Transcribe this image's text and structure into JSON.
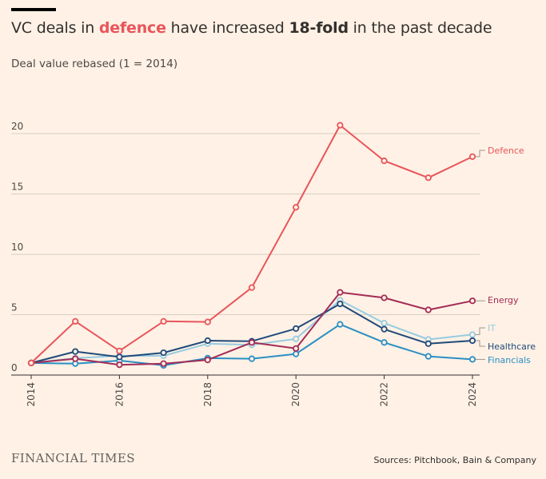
{
  "header": {
    "title_part1": "VC deals in ",
    "title_highlight": "defence",
    "title_part2": " have increased ",
    "title_bold": "18-fold",
    "title_part3": " in the past decade",
    "subtitle": "Deal value rebased (1 = 2014)"
  },
  "footer": {
    "brand": "FINANCIAL TIMES",
    "source": "Sources: Pitchbook, Bain & Company"
  },
  "colors": {
    "background": "#fff1e5",
    "highlight": "#e8555b",
    "grid": "#d8ccc1"
  },
  "chart_data": {
    "type": "line",
    "ylabel": "Deal value rebased (1 = 2014)",
    "xlim": [
      2014,
      2024
    ],
    "ylim": [
      0,
      22
    ],
    "yticks": [
      0,
      5,
      10,
      15,
      20
    ],
    "xticks": [
      "2014",
      "2016",
      "2018",
      "2020",
      "2022",
      "2024"
    ],
    "x": [
      2014,
      2015,
      2016,
      2017,
      2018,
      2019,
      2020,
      2021,
      2022,
      2023,
      2024
    ],
    "grid": true,
    "legend": "direct labels at line ends (right)",
    "series": [
      {
        "name": "Financials",
        "color": "#2a8fc4",
        "values": [
          1.0,
          0.95,
          1.2,
          0.8,
          1.4,
          1.35,
          1.75,
          4.2,
          2.7,
          1.55,
          1.3
        ]
      },
      {
        "name": "IT",
        "color": "#96cce1",
        "values": [
          1.0,
          1.4,
          1.6,
          1.6,
          2.6,
          2.5,
          3.0,
          6.2,
          4.3,
          2.95,
          3.35
        ]
      },
      {
        "name": "Healthcare",
        "color": "#204a7b",
        "values": [
          1.0,
          1.95,
          1.5,
          1.85,
          2.85,
          2.8,
          3.85,
          5.9,
          3.8,
          2.6,
          2.85
        ]
      },
      {
        "name": "Energy",
        "color": "#a42c56",
        "values": [
          1.0,
          1.35,
          0.85,
          0.95,
          1.25,
          2.7,
          2.2,
          6.85,
          6.4,
          5.4,
          6.15
        ]
      },
      {
        "name": "Defence",
        "color": "#e8555b",
        "values": [
          1.0,
          4.45,
          2.0,
          4.45,
          4.4,
          7.25,
          13.9,
          20.7,
          17.75,
          16.35,
          18.1
        ]
      }
    ]
  }
}
